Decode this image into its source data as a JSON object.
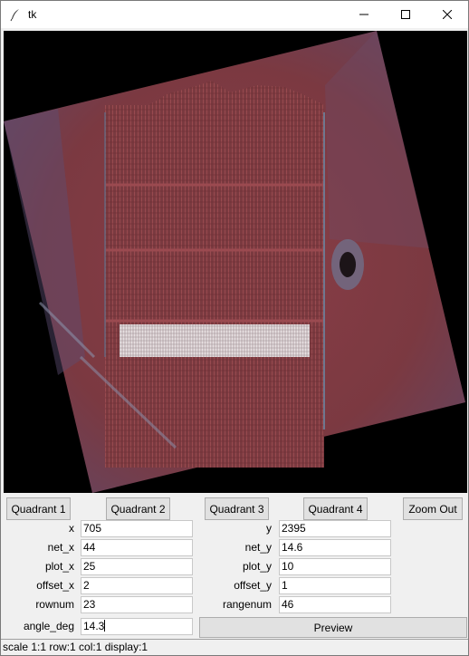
{
  "window": {
    "title": "tk"
  },
  "buttons": {
    "quadrant1": "Quadrant 1",
    "quadrant2": "Quadrant 2",
    "quadrant3": "Quadrant 3",
    "quadrant4": "Quadrant 4",
    "zoom_out": "Zoom Out",
    "preview": "Preview"
  },
  "fields": {
    "x": {
      "label": "x",
      "value": "705"
    },
    "y": {
      "label": "y",
      "value": "2395"
    },
    "net_x": {
      "label": "net_x",
      "value": "44"
    },
    "net_y": {
      "label": "net_y",
      "value": "14.6"
    },
    "plot_x": {
      "label": "plot_x",
      "value": "25"
    },
    "plot_y": {
      "label": "plot_y",
      "value": "10"
    },
    "offset_x": {
      "label": "offset_x",
      "value": "2"
    },
    "offset_y": {
      "label": "offset_y",
      "value": "1"
    },
    "rownum": {
      "label": "rownum",
      "value": "23"
    },
    "rangenum": {
      "label": "rangenum",
      "value": "46"
    },
    "angle_deg": {
      "label": "angle_deg",
      "value": "14.3"
    }
  },
  "status": "scale 1:1 row:1 col:1 display:1",
  "icons": {
    "app": "feather-icon",
    "minimize": "minimize-icon",
    "maximize": "maximize-icon",
    "close": "close-icon"
  }
}
